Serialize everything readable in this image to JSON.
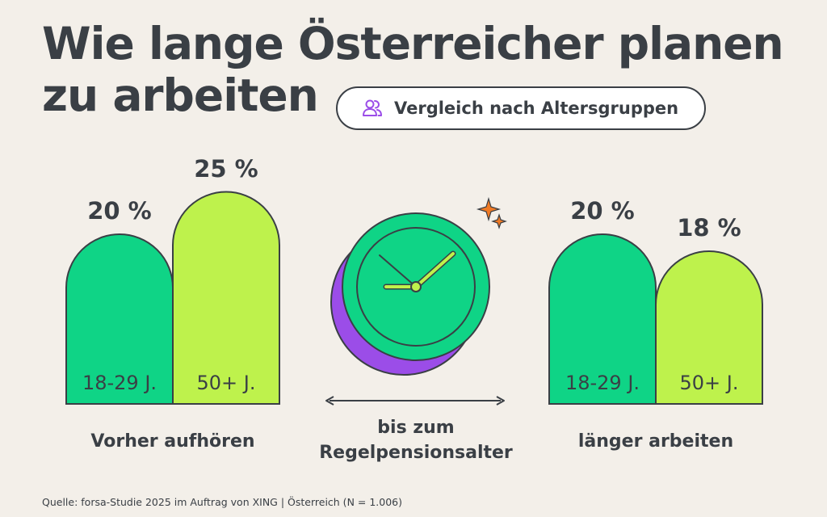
{
  "title_line1": "Wie lange Österreicher planen",
  "title_line2": "zu arbeiten",
  "pill_label": "Vergleich nach Altersgruppen",
  "center_label_line1": "bis zum",
  "center_label_line2": "Regelpensionsalter",
  "source": "Quelle: forsa-Studie 2025 im Auftrag von XING | Österreich (N = 1.006)",
  "colors": {
    "background": "#f3efe9",
    "group_18_29": "#0fd486",
    "group_50_plus": "#bef24c",
    "outline": "#3a3f45",
    "clock_shadow": "#9b4de8",
    "sparkle": "#f07a24"
  },
  "icons": {
    "pill": "users-icon",
    "sparkle": "sparkle-icon",
    "clock": "clock-icon"
  },
  "chart_data": [
    {
      "type": "bar",
      "categories": [
        "18-29 J.",
        "50+ J."
      ],
      "values": [
        20,
        25
      ],
      "value_labels": [
        "20 %",
        "25 %"
      ],
      "group_label": "Vorher aufhören",
      "colors": [
        "#0fd486",
        "#bef24c"
      ]
    },
    {
      "type": "bar",
      "categories": [
        "18-29 J.",
        "50+ J."
      ],
      "values": [
        20,
        18
      ],
      "value_labels": [
        "20 %",
        "18 %"
      ],
      "group_label": "länger arbeiten",
      "colors": [
        "#0fd486",
        "#bef24c"
      ]
    }
  ]
}
